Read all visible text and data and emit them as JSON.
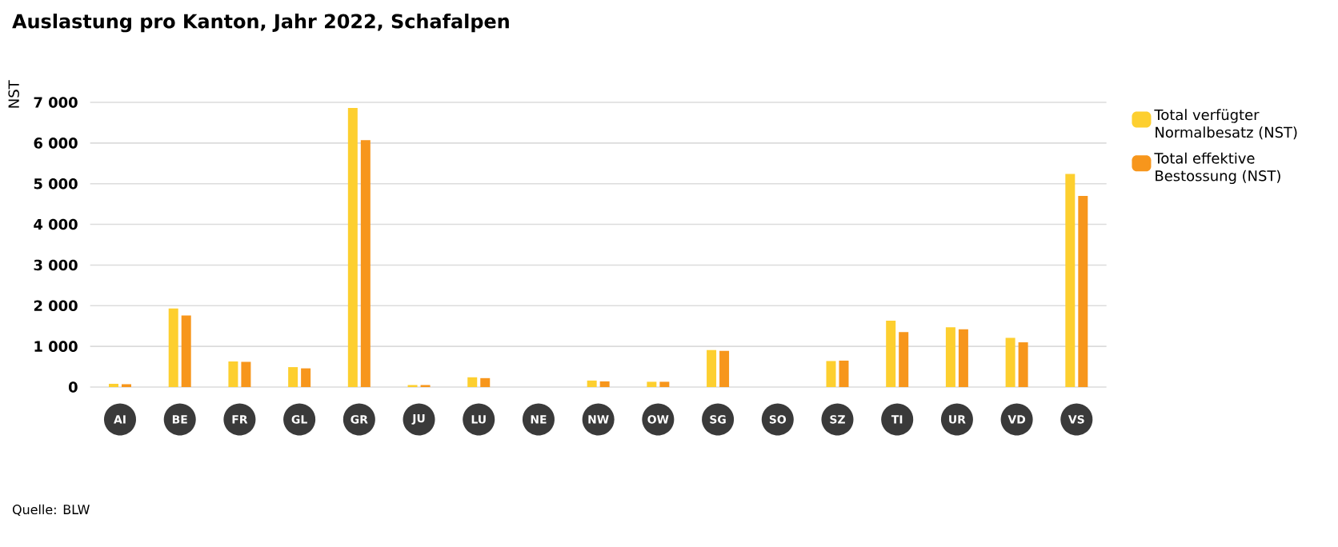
{
  "chart_data": {
    "type": "bar",
    "title": "Auslastung pro Kanton, Jahr 2022, Schafalpen",
    "ylabel": "NST",
    "categories": [
      "AI",
      "BE",
      "FR",
      "GL",
      "GR",
      "JU",
      "LU",
      "NE",
      "NW",
      "OW",
      "SG",
      "SO",
      "SZ",
      "TI",
      "UR",
      "VD",
      "VS"
    ],
    "series": [
      {
        "name": "Total verfügter Normalbesatz (NST)",
        "color": "#fdcf2f",
        "values": [
          80,
          1930,
          630,
          490,
          6860,
          50,
          240,
          0,
          160,
          130,
          910,
          0,
          640,
          1630,
          1470,
          1210,
          5240
        ]
      },
      {
        "name": "Total effektive Bestossung (NST)",
        "color": "#f7961c",
        "values": [
          70,
          1760,
          620,
          460,
          6070,
          50,
          220,
          0,
          140,
          130,
          890,
          0,
          650,
          1350,
          1420,
          1100,
          4700
        ]
      }
    ],
    "ylim": [
      0,
      7000
    ],
    "yticks": [
      0,
      {
        "value": 1000,
        "label": "1 000"
      },
      {
        "value": 2000,
        "label": "2 000"
      },
      {
        "value": 3000,
        "label": "3 000"
      },
      {
        "value": 4000,
        "label": "4 000"
      },
      {
        "value": 5000,
        "label": "5 000"
      },
      {
        "value": 6000,
        "label": "6 000"
      },
      {
        "value": 7000,
        "label": "7 000"
      }
    ],
    "grid": "y",
    "legend": "top right",
    "annotations": [
      "Quelle: BLW"
    ]
  }
}
